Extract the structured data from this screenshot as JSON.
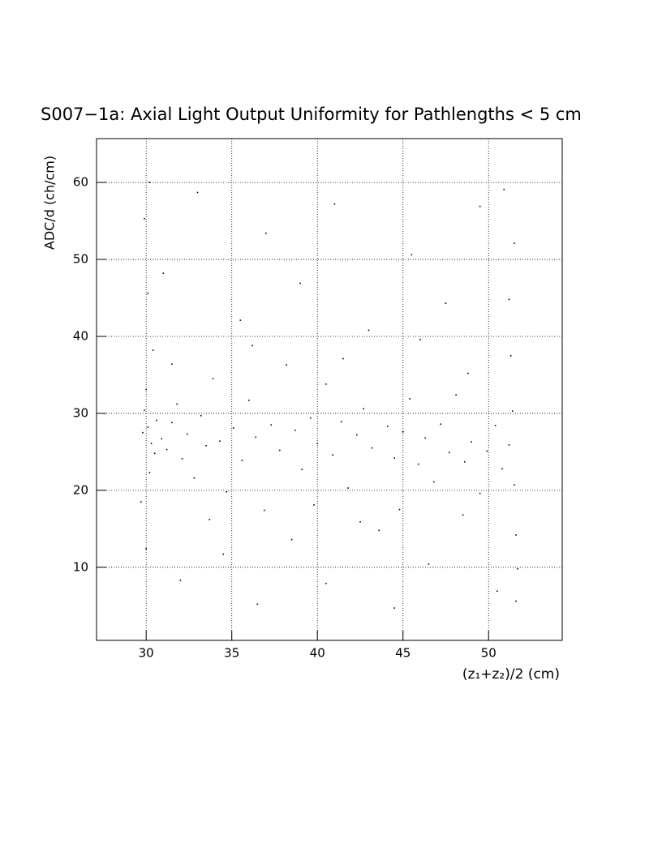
{
  "chart_data": {
    "type": "scatter",
    "title": "S007−1a: Axial Light Output Uniformity for Pathlengths < 5 cm",
    "x_label": "(z₁+z₂)/2 (cm)",
    "y_label": "ADC/d (ch/cm)",
    "xlim": [
      27.1,
      54.3
    ],
    "ylim": [
      0.5,
      65.7
    ],
    "xticks": [
      30,
      35,
      40,
      45,
      50
    ],
    "yticks": [
      10,
      20,
      30,
      40,
      50,
      60
    ],
    "grid": true,
    "color": "#000000",
    "x": [
      29.8,
      30.1,
      30.3,
      29.9,
      30.5,
      30.2,
      30.0,
      29.7,
      30.4,
      30.1,
      29.9,
      30.0,
      30.6,
      30.9,
      31.2,
      31.5,
      31.8,
      32.1,
      32.4,
      32.8,
      33.2,
      33.5,
      33.9,
      34.3,
      34.7,
      35.1,
      35.6,
      36.0,
      36.4,
      36.9,
      37.3,
      37.8,
      38.2,
      38.7,
      39.1,
      39.6,
      40.0,
      40.5,
      40.9,
      41.4,
      41.8,
      42.3,
      42.7,
      43.2,
      43.6,
      44.1,
      44.5,
      45.0,
      45.4,
      45.9,
      46.3,
      46.8,
      47.2,
      47.7,
      48.1,
      48.6,
      49.0,
      49.5,
      49.9,
      50.4,
      50.8,
      51.2,
      51.5,
      51.6,
      51.4,
      51.7,
      51.3,
      51.5,
      51.6,
      51.2,
      31.0,
      33.0,
      35.5,
      37.0,
      39.0,
      41.0,
      43.0,
      45.5,
      47.5,
      49.5,
      32.0,
      34.5,
      36.5,
      38.5,
      40.5,
      42.5,
      44.5,
      46.5,
      48.5,
      50.5,
      31.5,
      36.2,
      41.5,
      46.0,
      48.8,
      33.7,
      39.8,
      44.8,
      30.2,
      50.9
    ],
    "values": [
      27.5,
      28.2,
      26.1,
      30.4,
      24.8,
      22.3,
      33.1,
      18.5,
      38.2,
      45.6,
      55.3,
      12.4,
      29.1,
      26.7,
      25.3,
      28.8,
      31.2,
      24.1,
      27.3,
      21.6,
      29.7,
      25.8,
      34.5,
      26.4,
      19.8,
      28.1,
      23.9,
      31.7,
      26.9,
      17.4,
      28.5,
      25.2,
      36.3,
      27.8,
      22.7,
      29.4,
      26.1,
      33.8,
      24.6,
      28.9,
      20.3,
      27.2,
      30.6,
      25.5,
      14.8,
      28.3,
      24.2,
      27.6,
      31.9,
      23.4,
      26.8,
      21.1,
      28.6,
      24.9,
      32.4,
      23.7,
      26.3,
      19.6,
      25.1,
      28.4,
      22.8,
      25.9,
      20.7,
      14.2,
      30.3,
      9.8,
      37.5,
      52.1,
      5.6,
      44.8,
      48.2,
      58.7,
      42.1,
      53.4,
      46.9,
      57.2,
      40.8,
      50.6,
      44.3,
      56.9,
      8.3,
      11.7,
      5.2,
      13.6,
      7.9,
      15.9,
      4.7,
      10.4,
      16.8,
      6.9,
      36.4,
      38.8,
      37.1,
      39.6,
      35.2,
      16.2,
      18.1,
      17.5,
      60.0,
      59.1
    ]
  }
}
